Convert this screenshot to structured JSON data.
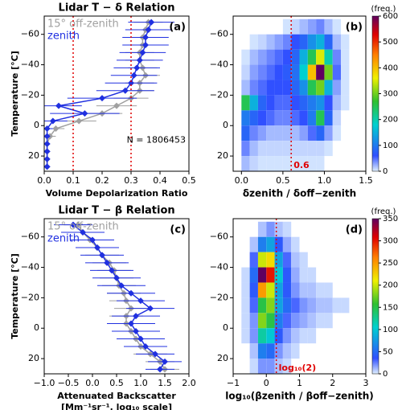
{
  "chart_data": [
    {
      "type": "profile",
      "title": "Lidar T − δ Relation",
      "xlabel": "Volume Depolarization Ratio",
      "ylabel": "Temperature [°C]",
      "annotations": [
        "(a)",
        "N = 1806453"
      ],
      "y": [
        -68,
        -63,
        -58,
        -53,
        -48,
        -43,
        -38,
        -33,
        -28,
        -23,
        -18,
        -13,
        -8,
        -3,
        2,
        7,
        12,
        17,
        22,
        27
      ],
      "series": [
        {
          "name": "15° off-zenith",
          "color": "#a0a0a0",
          "values": [
            0.36,
            0.35,
            0.34,
            0.34,
            0.33,
            0.33,
            0.34,
            0.35,
            0.33,
            0.33,
            0.3,
            0.25,
            0.2,
            0.12,
            0.04,
            0.02,
            0.01,
            0.01,
            0.01,
            0.01
          ],
          "errors": [
            0.05,
            0.05,
            0.05,
            0.05,
            0.05,
            0.05,
            0.05,
            0.05,
            0.05,
            0.05,
            0.06,
            0.07,
            0.07,
            0.06,
            0.03,
            0.02,
            0.01,
            0.01,
            0.01,
            0.01
          ]
        },
        {
          "name": "zenith",
          "color": "#2030e0",
          "values": [
            0.37,
            0.36,
            0.35,
            0.35,
            0.34,
            0.33,
            0.32,
            0.31,
            0.3,
            0.28,
            0.2,
            0.05,
            0.14,
            0.03,
            0.01,
            0.01,
            0.01,
            0.01,
            0.01,
            0.01
          ],
          "errors": [
            0.08,
            0.08,
            0.08,
            0.08,
            0.08,
            0.08,
            0.08,
            0.08,
            0.09,
            0.1,
            0.12,
            0.08,
            0.12,
            0.05,
            0.02,
            0.01,
            0.01,
            0.01,
            0.01,
            0.01
          ]
        }
      ],
      "vlines": [
        {
          "x": 0.1,
          "color": "#e00000"
        },
        {
          "x": 0.3,
          "color": "#e00000"
        }
      ],
      "xlim": [
        0,
        0.5
      ],
      "xticks": [
        {
          "value": 0,
          "label": "0.0"
        },
        0.1,
        0.2,
        0.3,
        0.4,
        0.5
      ],
      "ylim": [
        30,
        -72
      ],
      "yticks": [
        {
          "value": -60,
          "label": "−60"
        },
        {
          "value": -40,
          "label": "−40"
        },
        {
          "value": -20,
          "label": "−20"
        },
        0,
        20
      ]
    },
    {
      "type": "heatmap",
      "xlabel": "δzenith / δoff−zenith",
      "annotations": [
        "(b)"
      ],
      "clabel": "(freq.)",
      "vlines": [
        {
          "x": 0.6,
          "color": "#e00000",
          "label": "0.6"
        }
      ],
      "xbins": [
        0,
        0.1,
        0.2,
        0.3,
        0.4,
        0.5,
        0.6,
        0.7,
        0.8,
        0.9,
        1.0,
        1.1,
        1.2,
        1.3,
        1.4,
        1.5
      ],
      "ybins": [
        -70,
        -60,
        -50,
        -40,
        -30,
        -20,
        -10,
        0,
        10,
        20,
        30
      ],
      "z": [
        [
          0,
          0,
          0,
          0,
          0,
          5,
          10,
          20,
          30,
          40,
          20,
          5,
          0,
          0,
          0
        ],
        [
          0,
          5,
          10,
          20,
          30,
          40,
          60,
          80,
          120,
          150,
          80,
          20,
          5,
          0,
          0
        ],
        [
          5,
          20,
          30,
          40,
          50,
          60,
          80,
          150,
          250,
          350,
          200,
          40,
          5,
          0,
          0
        ],
        [
          10,
          30,
          40,
          50,
          60,
          70,
          90,
          180,
          400,
          600,
          300,
          50,
          5,
          0,
          0
        ],
        [
          20,
          40,
          50,
          60,
          60,
          60,
          80,
          120,
          250,
          300,
          150,
          30,
          5,
          0,
          0
        ],
        [
          250,
          150,
          80,
          60,
          50,
          50,
          60,
          80,
          100,
          120,
          60,
          20,
          5,
          0,
          0
        ],
        [
          100,
          80,
          60,
          50,
          40,
          40,
          50,
          60,
          100,
          250,
          80,
          10,
          0,
          0,
          0
        ],
        [
          80,
          40,
          30,
          20,
          20,
          20,
          20,
          30,
          50,
          80,
          30,
          5,
          0,
          0,
          0
        ],
        [
          40,
          20,
          10,
          10,
          10,
          10,
          10,
          10,
          10,
          10,
          5,
          0,
          0,
          0,
          0
        ],
        [
          20,
          10,
          5,
          5,
          5,
          5,
          5,
          5,
          5,
          5,
          0,
          0,
          0,
          0,
          0
        ]
      ],
      "clim": [
        0,
        600
      ],
      "cticks": [
        0,
        100,
        200,
        300,
        400,
        500,
        600
      ],
      "xlim": [
        -0.1,
        1.5
      ],
      "xticks": [
        {
          "value": 0,
          "label": "0.0"
        },
        0.5,
        {
          "value": 1,
          "label": "1.0"
        },
        1.5
      ],
      "ylim": [
        30,
        -72
      ],
      "yticks": [
        {
          "value": -60,
          "label": "−60"
        },
        {
          "value": -40,
          "label": "−40"
        },
        {
          "value": -20,
          "label": "−20"
        },
        0,
        20
      ]
    },
    {
      "type": "profile",
      "title": "Lidar T − β Relation",
      "xlabel": "Attenuated Backscatter",
      "xlabel2": "[Mm⁻¹sr⁻¹, log₁₀ scale]",
      "ylabel": "Temperature [°C]",
      "annotations": [
        "(c)"
      ],
      "y": [
        -68,
        -63,
        -58,
        -53,
        -48,
        -43,
        -38,
        -33,
        -28,
        -23,
        -18,
        -13,
        -8,
        -3,
        2,
        7,
        12,
        17,
        22,
        27
      ],
      "series": [
        {
          "name": "15° off-zenith",
          "color": "#a0a0a0",
          "values": [
            -0.3,
            -0.2,
            -0.05,
            0.1,
            0.2,
            0.35,
            0.45,
            0.5,
            0.55,
            0.65,
            0.7,
            0.8,
            0.7,
            0.7,
            0.8,
            0.9,
            1.0,
            1.2,
            1.4,
            1.5
          ],
          "errors": [
            0.3,
            0.3,
            0.35,
            0.35,
            0.35,
            0.35,
            0.35,
            0.35,
            0.35,
            0.35,
            0.35,
            0.35,
            0.35,
            0.35,
            0.35,
            0.35,
            0.35,
            0.35,
            0.3,
            0.3
          ]
        },
        {
          "name": "zenith",
          "color": "#2030e0",
          "values": [
            -0.4,
            -0.2,
            0.0,
            0.1,
            0.2,
            0.3,
            0.4,
            0.5,
            0.6,
            0.8,
            1.0,
            1.2,
            0.9,
            0.8,
            0.9,
            1.0,
            1.1,
            1.3,
            1.5,
            1.4
          ],
          "errors": [
            0.4,
            0.45,
            0.45,
            0.45,
            0.45,
            0.45,
            0.45,
            0.5,
            0.5,
            0.5,
            0.5,
            0.5,
            0.5,
            0.5,
            0.5,
            0.5,
            0.45,
            0.4,
            0.35,
            0.3
          ]
        }
      ],
      "xlim": [
        -1,
        2
      ],
      "xticks": [
        {
          "value": -1,
          "label": "−1.0"
        },
        {
          "value": -0.5,
          "label": "−0.5"
        },
        {
          "value": 0,
          "label": "0.0"
        },
        0.5,
        {
          "value": 1,
          "label": "1.0"
        },
        1.5,
        {
          "value": 2,
          "label": "2.0"
        }
      ],
      "ylim": [
        30,
        -72
      ],
      "yticks": [
        {
          "value": -60,
          "label": "−60"
        },
        {
          "value": -40,
          "label": "−40"
        },
        {
          "value": -20,
          "label": "−20"
        },
        0,
        20
      ]
    },
    {
      "type": "heatmap",
      "xlabel": "log₁₀(βzenith / βoff−zenith)",
      "annotations": [
        "(d)"
      ],
      "clabel": "(freq.)",
      "vlines": [
        {
          "x": 0.301,
          "color": "#e00000",
          "label": "log₁₀(2)"
        }
      ],
      "xbins": [
        -1,
        -0.75,
        -0.5,
        -0.25,
        0,
        0.25,
        0.5,
        0.75,
        1,
        1.25,
        1.5,
        1.75,
        2,
        2.25,
        2.5,
        2.75,
        3
      ],
      "ybins": [
        -70,
        -60,
        -50,
        -40,
        -30,
        -20,
        -10,
        0,
        10,
        20,
        30
      ],
      "z": [
        [
          0,
          0,
          0,
          10,
          20,
          10,
          5,
          0,
          0,
          0,
          0,
          0,
          0,
          0,
          0,
          0
        ],
        [
          0,
          0,
          10,
          60,
          80,
          40,
          15,
          5,
          0,
          0,
          0,
          0,
          0,
          0,
          0,
          0
        ],
        [
          0,
          0,
          30,
          200,
          220,
          80,
          30,
          10,
          5,
          0,
          0,
          0,
          0,
          0,
          0,
          0
        ],
        [
          0,
          5,
          50,
          350,
          300,
          100,
          40,
          15,
          5,
          5,
          0,
          0,
          0,
          0,
          0,
          0
        ],
        [
          0,
          5,
          40,
          250,
          200,
          80,
          40,
          20,
          10,
          10,
          5,
          5,
          0,
          0,
          0,
          0
        ],
        [
          0,
          5,
          30,
          150,
          180,
          80,
          50,
          30,
          20,
          15,
          10,
          10,
          5,
          5,
          0,
          0
        ],
        [
          0,
          5,
          20,
          180,
          150,
          60,
          30,
          20,
          15,
          10,
          5,
          5,
          0,
          0,
          0,
          0
        ],
        [
          0,
          5,
          20,
          120,
          100,
          40,
          20,
          10,
          5,
          5,
          0,
          0,
          0,
          0,
          0,
          0
        ],
        [
          0,
          0,
          10,
          60,
          50,
          20,
          10,
          5,
          0,
          0,
          0,
          0,
          0,
          0,
          0,
          0
        ],
        [
          0,
          0,
          5,
          20,
          20,
          10,
          5,
          0,
          0,
          0,
          0,
          0,
          0,
          0,
          0,
          0
        ]
      ],
      "clim": [
        0,
        350
      ],
      "cticks": [
        0,
        50,
        100,
        150,
        200,
        250,
        300,
        350
      ],
      "xlim": [
        -1,
        3
      ],
      "xticks": [
        {
          "value": -1,
          "label": "−1"
        },
        0,
        1,
        2,
        3
      ],
      "ylim": [
        30,
        -72
      ],
      "yticks": [
        {
          "value": -60,
          "label": "−60"
        },
        {
          "value": -40,
          "label": "−40"
        },
        {
          "value": -20,
          "label": "−20"
        },
        0,
        20
      ]
    }
  ]
}
